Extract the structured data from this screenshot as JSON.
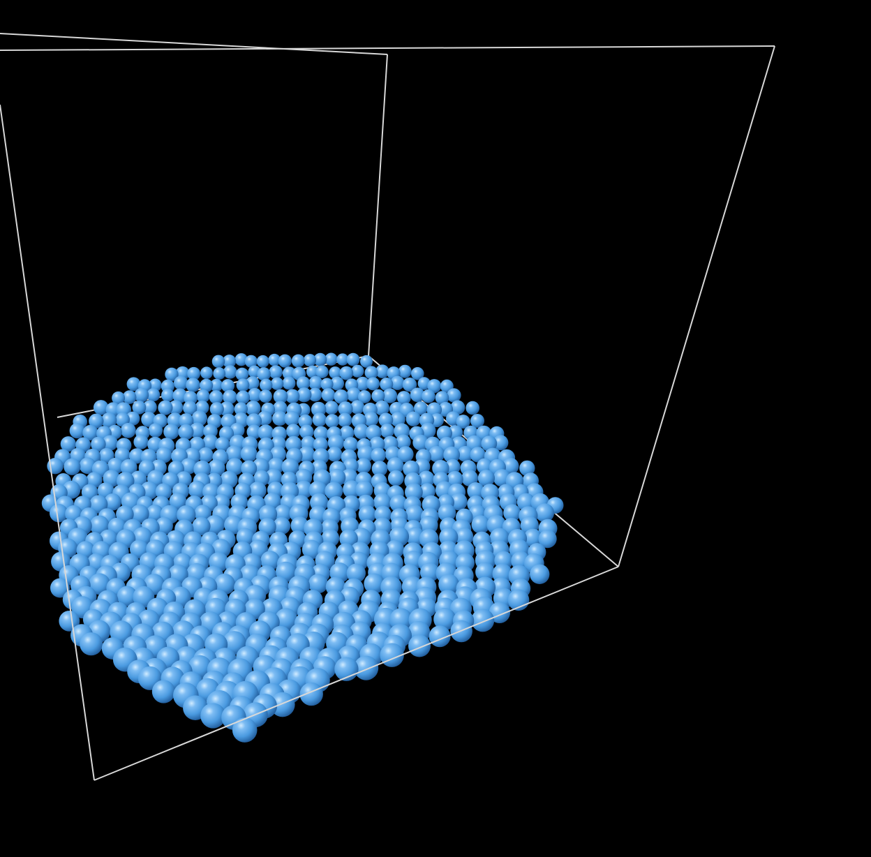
{
  "scene": {
    "background_color": "#000000",
    "frame_color": "#d8d8d8",
    "particle_color": "#4a9ae0",
    "particle_highlight": "#bfe0ff",
    "particle_shadow": "#1a4f8a",
    "particle_count": 900
  }
}
